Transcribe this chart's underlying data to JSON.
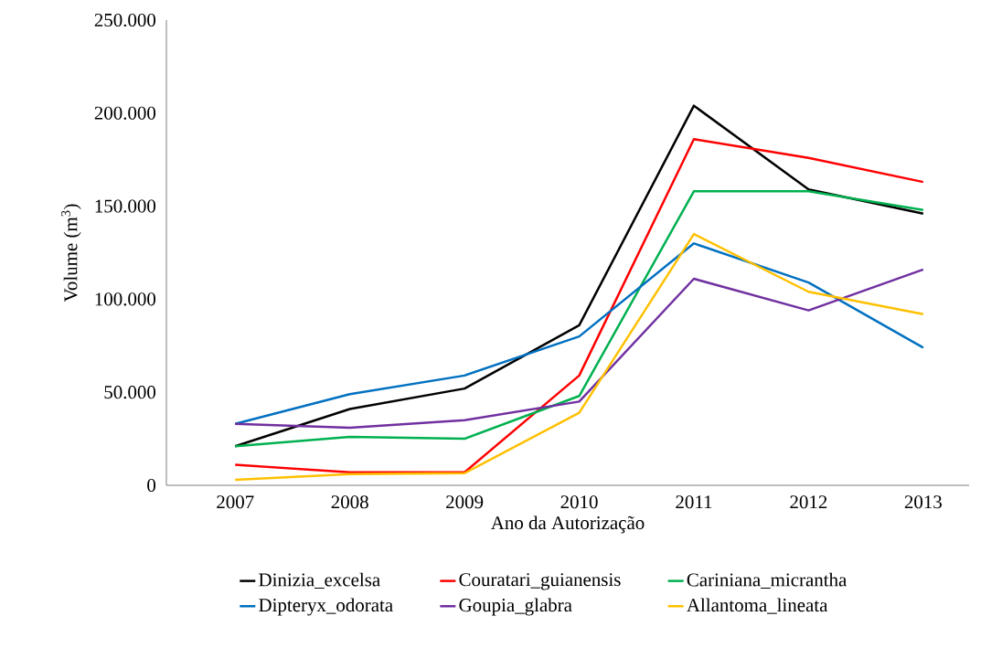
{
  "chart_data": {
    "type": "line",
    "xlabel": "Ano da Autorização",
    "ylabel": "Volume (m$^{3}$)",
    "categories": [
      "2007",
      "2008",
      "2009",
      "2010",
      "2011",
      "2012",
      "2013"
    ],
    "ylim": [
      0,
      250000
    ],
    "yticks": [
      {
        "value": 0,
        "label": "0"
      },
      {
        "value": 50000,
        "label": "50.000"
      },
      {
        "value": 100000,
        "label": "100.000"
      },
      {
        "value": 150000,
        "label": "150.000"
      },
      {
        "value": 200000,
        "label": "200.000"
      },
      {
        "value": 250000,
        "label": "250.000"
      }
    ],
    "legend": "bottom",
    "grid": false,
    "marker": "none",
    "line_style": "solid",
    "series": [
      {
        "name": "Dinizia_excelsa",
        "color": "#000000",
        "values": [
          21000,
          41000,
          52000,
          86000,
          204000,
          159000,
          146000
        ]
      },
      {
        "name": "Couratari_guianensis",
        "color": "#ff0000",
        "values": [
          11000,
          7000,
          7000,
          59000,
          186000,
          176000,
          163000
        ]
      },
      {
        "name": "Cariniana_micrantha",
        "color": "#00b050",
        "values": [
          21000,
          26000,
          25000,
          48000,
          158000,
          158000,
          148000
        ]
      },
      {
        "name": "Dipteryx_odorata",
        "color": "#0070c0",
        "values": [
          33000,
          49000,
          59000,
          80000,
          130000,
          109000,
          74000
        ]
      },
      {
        "name": "Goupia_glabra",
        "color": "#7030a0",
        "values": [
          33000,
          31000,
          35000,
          45000,
          111000,
          94000,
          116000
        ]
      },
      {
        "name": "Allantoma_lineata",
        "color": "#ffc000",
        "values": [
          3000,
          6000,
          6500,
          39000,
          135000,
          104000,
          92000
        ]
      }
    ]
  }
}
